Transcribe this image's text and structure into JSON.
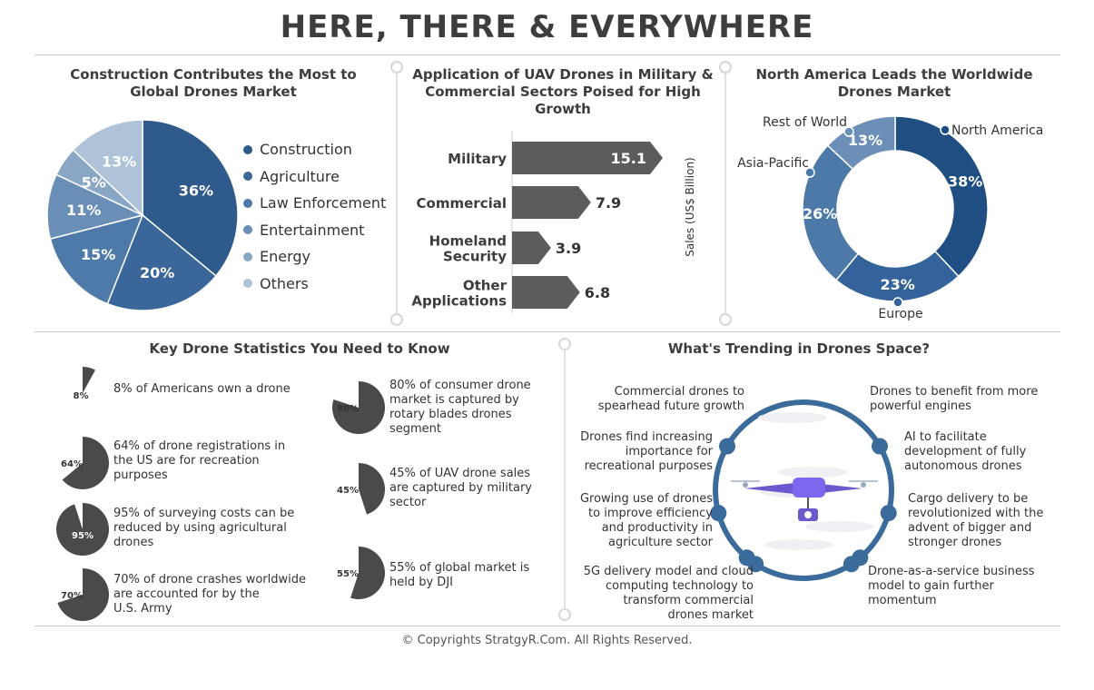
{
  "title": "HERE, THERE & EVERYWHERE",
  "footer": "© Copyrights StratgyR.Com. All Rights Reserved.",
  "colors": {
    "pie": [
      "#2e5a8c",
      "#3a6699",
      "#4d7aa8",
      "#6a8fb6",
      "#89a7c5",
      "#afc3d8"
    ],
    "donut": [
      "#1f4e82",
      "#33639a",
      "#4d79a8",
      "#6b8fb6"
    ],
    "bars": "#5c5c5c",
    "trend_ring": "#3a6b9a"
  },
  "chart_data": [
    {
      "type": "pie",
      "title": "Construction Contributes the Most to Global Drones Market",
      "categories": [
        "Construction",
        "Agriculture",
        "Law Enforcement",
        "Entertainment",
        "Energy",
        "Others"
      ],
      "values": [
        36,
        20,
        15,
        11,
        5,
        13
      ],
      "labels": [
        "36%",
        "20%",
        "15%",
        "11%",
        "5%",
        "13%"
      ],
      "legend": "right"
    },
    {
      "type": "bar",
      "title": "Application of UAV Drones in Military & Commercial Sectors Poised for High Growth",
      "categories": [
        "Military",
        "Commercial",
        "Homeland Security",
        "Other Applications"
      ],
      "category_lines": [
        [
          "Military"
        ],
        [
          "Commercial"
        ],
        [
          "Homeland",
          "Security"
        ],
        [
          "Other",
          "Applications"
        ]
      ],
      "values": [
        15.1,
        7.9,
        3.9,
        6.8
      ],
      "value_labels": [
        "15.1",
        "7.9",
        "3.9",
        "6.8"
      ],
      "ylabel": "Sales (US$ Billion)"
    },
    {
      "type": "pie",
      "title": "North America Leads the Worldwide Drones Market",
      "categories": [
        "North America",
        "Europe",
        "Asia-Pacific",
        "Rest of World"
      ],
      "values": [
        38,
        23,
        26,
        13
      ],
      "labels": [
        "38%",
        "23%",
        "26%",
        "13%"
      ]
    }
  ],
  "stats": {
    "title": "Key Drone Statistics You Need to Know",
    "left": [
      {
        "pct": 8,
        "label": "8%",
        "text": [
          "8% of Americans own a drone"
        ]
      },
      {
        "pct": 64,
        "label": "64%",
        "text": [
          "64% of drone registrations in",
          "the US are for recreation",
          "purposes"
        ]
      },
      {
        "pct": 95,
        "label": "95%",
        "text": [
          "95% of surveying costs can be",
          "reduced by using agricultural",
          "drones"
        ]
      },
      {
        "pct": 70,
        "label": "70%",
        "text": [
          "70% of drone crashes worldwide",
          "are accounted for by the",
          "U.S. Army"
        ]
      }
    ],
    "right": [
      {
        "pct": 80,
        "label": "80%",
        "text": [
          "80% of consumer drone",
          "market is captured by",
          "rotary blades drones",
          "segment"
        ]
      },
      {
        "pct": 45,
        "label": "45%",
        "text": [
          "45% of UAV drone sales",
          "are captured by military",
          "sector"
        ]
      },
      {
        "pct": 55,
        "label": "55%",
        "text": [
          "55% of global market is",
          "held by DJI"
        ]
      }
    ]
  },
  "trends": {
    "title": "What's Trending in Drones Space?",
    "left": [
      [
        "Commercial drones to",
        "spearhead future growth"
      ],
      [
        "Drones find increasing",
        "importance for",
        "recreational purposes"
      ],
      [
        "Growing use of drones",
        "to improve efficiency",
        "and productivity in",
        "agriculture sector"
      ],
      [
        "5G delivery model and cloud",
        "computing technology to",
        "transform commercial",
        "drones market"
      ]
    ],
    "right": [
      [
        "Drones to benefit from more",
        "powerful engines"
      ],
      [
        "AI to facilitate",
        "development of fully",
        "autonomous drones"
      ],
      [
        "Cargo delivery to be",
        "revolutionized with the",
        "advent of bigger and",
        "stronger drones"
      ],
      [
        "Drone-as-a-service business",
        "model to gain further",
        "momentum"
      ]
    ]
  }
}
